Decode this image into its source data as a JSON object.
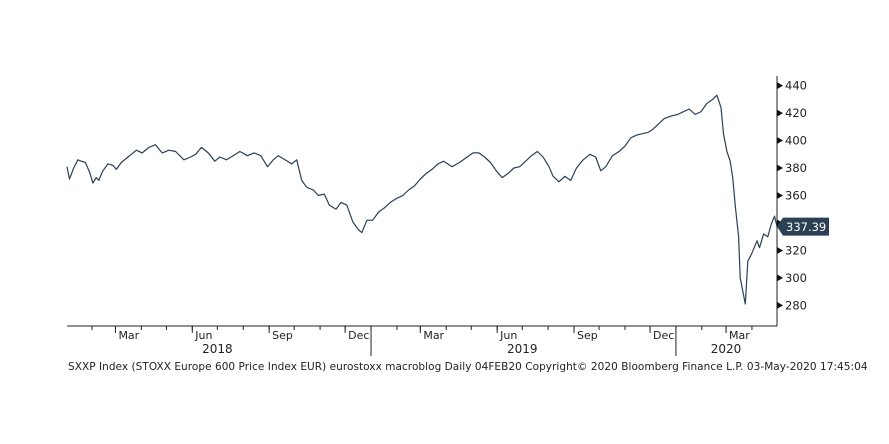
{
  "chart_data": {
    "type": "line",
    "title": "",
    "xlabel": "",
    "ylabel": "",
    "ylim": [
      265,
      447
    ],
    "xlim": [
      "2018-01-02",
      "2020-05-01"
    ],
    "y_ticks": [
      280,
      300,
      320,
      340,
      360,
      380,
      400,
      420,
      440
    ],
    "y_axis_side": "right",
    "grid": false,
    "x_month_ticks": [
      {
        "label": "Mar",
        "date": "2018-03-01"
      },
      {
        "label": "Jun",
        "date": "2018-06-01"
      },
      {
        "label": "Sep",
        "date": "2018-09-01"
      },
      {
        "label": "Dec",
        "date": "2018-12-01"
      },
      {
        "label": "Mar",
        "date": "2019-03-01"
      },
      {
        "label": "Jun",
        "date": "2019-06-01"
      },
      {
        "label": "Sep",
        "date": "2019-09-01"
      },
      {
        "label": "Dec",
        "date": "2019-12-01"
      },
      {
        "label": "Mar",
        "date": "2020-03-01"
      }
    ],
    "year_labels": [
      {
        "label": "2018",
        "date": "2018-07-01"
      },
      {
        "label": "2019",
        "date": "2019-07-01"
      },
      {
        "label": "2020",
        "date": "2020-03-01"
      }
    ],
    "year_separators": [
      "2019-01-01",
      "2020-01-01"
    ],
    "last_value_label": "337.39",
    "last_value": 337.39,
    "series": [
      {
        "color": "#2b3f55",
        "x": [
          "2018-01-02",
          "2018-01-05",
          "2018-01-10",
          "2018-01-15",
          "2018-01-19",
          "2018-01-24",
          "2018-01-29",
          "2018-02-02",
          "2018-02-06",
          "2018-02-09",
          "2018-02-14",
          "2018-02-20",
          "2018-02-26",
          "2018-03-02",
          "2018-03-08",
          "2018-03-14",
          "2018-03-20",
          "2018-03-26",
          "2018-04-02",
          "2018-04-10",
          "2018-04-18",
          "2018-04-26",
          "2018-05-04",
          "2018-05-12",
          "2018-05-22",
          "2018-05-30",
          "2018-06-05",
          "2018-06-12",
          "2018-06-20",
          "2018-06-28",
          "2018-07-04",
          "2018-07-12",
          "2018-07-20",
          "2018-07-28",
          "2018-08-06",
          "2018-08-14",
          "2018-08-22",
          "2018-08-30",
          "2018-09-06",
          "2018-09-12",
          "2018-09-20",
          "2018-09-28",
          "2018-10-04",
          "2018-10-10",
          "2018-10-16",
          "2018-10-24",
          "2018-10-30",
          "2018-11-06",
          "2018-11-12",
          "2018-11-20",
          "2018-11-26",
          "2018-12-03",
          "2018-12-10",
          "2018-12-17",
          "2018-12-21",
          "2018-12-27",
          "2019-01-03",
          "2019-01-10",
          "2019-01-17",
          "2019-01-24",
          "2019-02-01",
          "2019-02-08",
          "2019-02-15",
          "2019-02-22",
          "2019-03-01",
          "2019-03-08",
          "2019-03-15",
          "2019-03-22",
          "2019-03-29",
          "2019-04-08",
          "2019-04-17",
          "2019-04-26",
          "2019-05-03",
          "2019-05-10",
          "2019-05-17",
          "2019-05-24",
          "2019-05-31",
          "2019-06-07",
          "2019-06-14",
          "2019-06-21",
          "2019-06-28",
          "2019-07-05",
          "2019-07-12",
          "2019-07-19",
          "2019-07-26",
          "2019-08-02",
          "2019-08-07",
          "2019-08-14",
          "2019-08-21",
          "2019-08-28",
          "2019-09-04",
          "2019-09-12",
          "2019-09-20",
          "2019-09-27",
          "2019-10-03",
          "2019-10-09",
          "2019-10-17",
          "2019-10-25",
          "2019-11-01",
          "2019-11-08",
          "2019-11-15",
          "2019-11-22",
          "2019-11-29",
          "2019-12-04",
          "2019-12-11",
          "2019-12-18",
          "2019-12-27",
          "2020-01-03",
          "2020-01-10",
          "2020-01-17",
          "2020-01-24",
          "2020-01-31",
          "2020-02-07",
          "2020-02-14",
          "2020-02-19",
          "2020-02-24",
          "2020-02-27",
          "2020-03-02",
          "2020-03-06",
          "2020-03-09",
          "2020-03-12",
          "2020-03-16",
          "2020-03-18",
          "2020-03-24",
          "2020-03-27",
          "2020-04-01",
          "2020-04-07",
          "2020-04-10",
          "2020-04-15",
          "2020-04-20",
          "2020-04-24",
          "2020-04-28",
          "2020-05-01"
        ],
        "y": [
          381,
          372,
          380,
          386,
          385,
          384,
          377,
          369,
          373,
          371,
          378,
          383,
          382,
          379,
          384,
          387,
          390,
          393,
          391,
          395,
          397,
          391,
          393,
          392,
          386,
          388,
          390,
          395,
          391,
          385,
          388,
          386,
          389,
          392,
          389,
          391,
          389,
          381,
          386,
          389,
          386,
          383,
          386,
          371,
          366,
          364,
          360,
          361,
          353,
          350,
          355,
          353,
          341,
          335,
          333,
          342,
          342,
          348,
          351,
          355,
          358,
          360,
          364,
          367,
          372,
          376,
          379,
          383,
          385,
          381,
          384,
          388,
          391,
          391,
          388,
          384,
          378,
          373,
          376,
          380,
          381,
          385,
          389,
          392,
          388,
          381,
          374,
          370,
          374,
          371,
          380,
          386,
          390,
          388,
          378,
          381,
          389,
          392,
          396,
          402,
          404,
          405,
          406,
          408,
          412,
          416,
          418,
          419,
          421,
          423,
          419,
          421,
          427,
          430,
          433,
          424,
          405,
          392,
          385,
          373,
          353,
          330,
          300,
          281,
          312,
          318,
          327,
          322,
          332,
          330,
          339,
          345,
          337.39
        ]
      }
    ]
  },
  "footer_text": "SXXP Index (STOXX Europe 600 Price Index EUR) eurostoxx macroblog  Daily 04FEB20  Copyright© 2020 Bloomberg Finance L.P.  03-May-2020 17:45:04"
}
